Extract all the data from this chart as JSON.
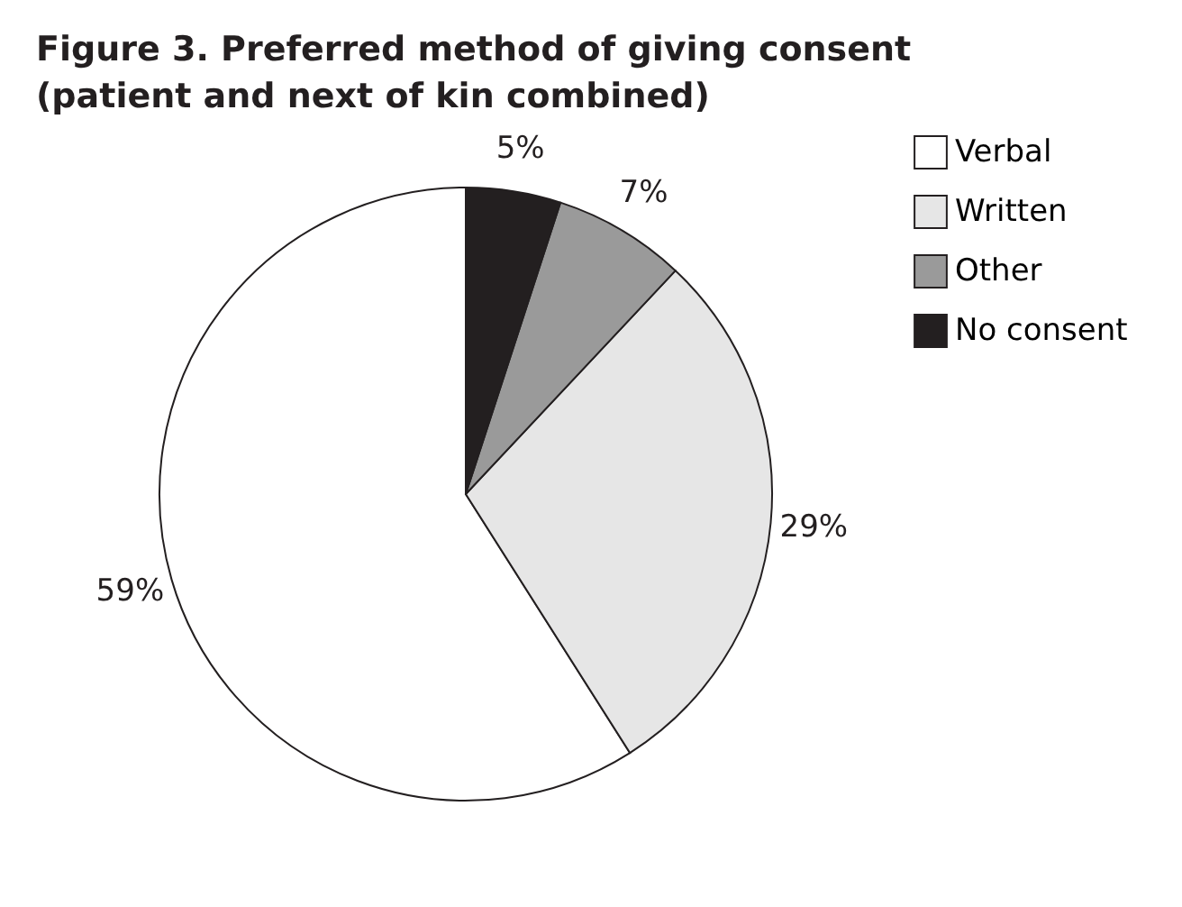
{
  "chart_data": {
    "type": "pie",
    "title": "Figure 3. Preferred method of giving consent (patient and next of kin combined)",
    "categories": [
      "Verbal",
      "Written",
      "Other",
      "No consent"
    ],
    "values": [
      59,
      29,
      7,
      5
    ],
    "colors": [
      "#ffffff",
      "#e6e6e6",
      "#9a9a9a",
      "#231f20"
    ],
    "value_labels": [
      "59%",
      "29%",
      "7%",
      "5%"
    ],
    "legend": "right"
  }
}
